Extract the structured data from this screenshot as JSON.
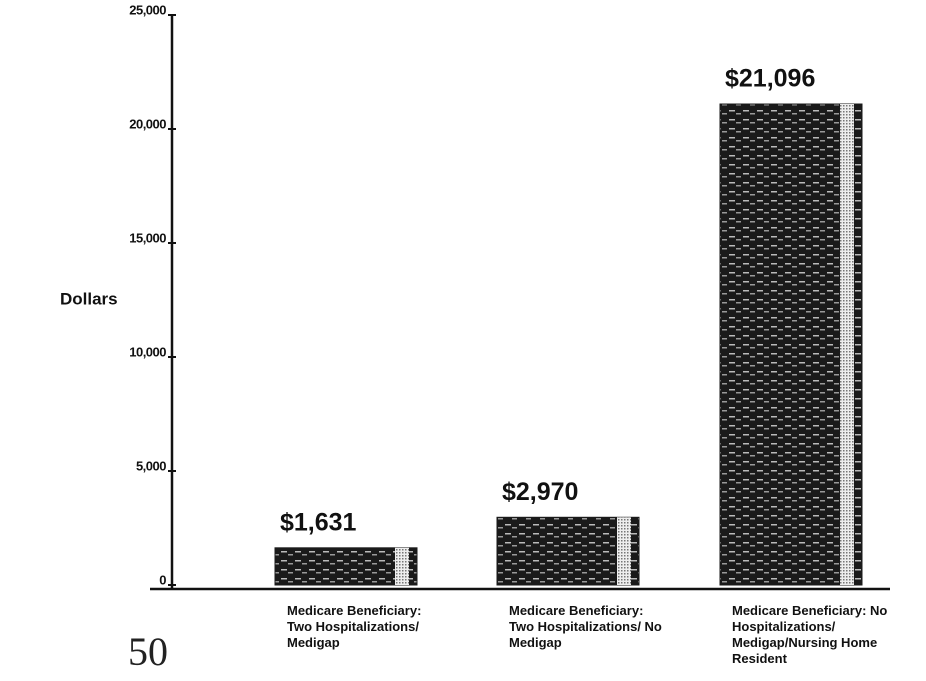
{
  "chart_data": {
    "type": "bar",
    "y_axis_label": "Dollars",
    "categories": [
      "Medicare Beneficiary: Two Hospitalizations/ Medigap",
      "Medicare Beneficiary: Two Hospitalizations/ No Medigap",
      "Medicare Beneficiary: No Hospitalizations/ Medigap/Nursing Home Resident"
    ],
    "values": [
      1631,
      2970,
      21096
    ],
    "value_labels": [
      "$1,631",
      "$2,970",
      "$21,096"
    ],
    "color": "#1a1a1a",
    "ylim": [
      0,
      25000
    ],
    "yticks": [
      0,
      {
        "value": 5000,
        "label": "5,000"
      },
      {
        "value": 10000,
        "label": "10,000"
      },
      {
        "value": 15000,
        "label": "15,000"
      },
      {
        "value": 20000,
        "label": "20,000"
      },
      {
        "value": 25000,
        "label": "25,000"
      }
    ]
  },
  "page_number": "50"
}
